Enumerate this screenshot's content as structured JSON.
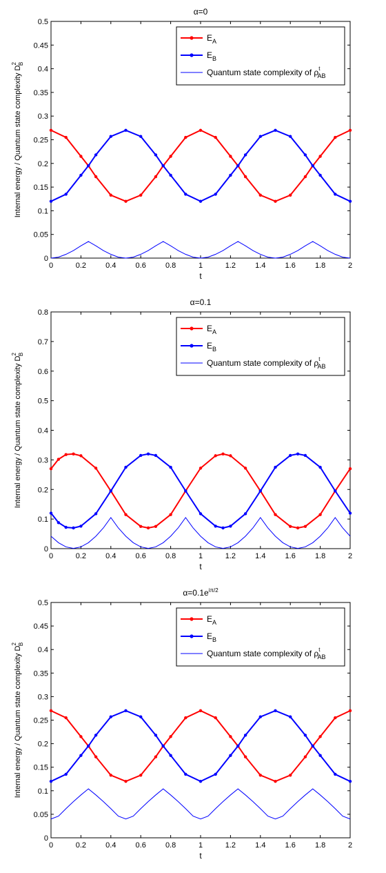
{
  "chart_data": [
    {
      "type": "line",
      "title": "α=0",
      "xlabel": "t",
      "ylabel": "Internal energy / Quantum state complexity D",
      "ylabel_sub": "B",
      "ylabel_sup": "2",
      "xlim": [
        0,
        2
      ],
      "ylim": [
        0,
        0.5
      ],
      "xticks": [
        "0",
        "0.2",
        "0.4",
        "0.6",
        "0.8",
        "1",
        "1.2",
        "1.4",
        "1.6",
        "1.8",
        "2"
      ],
      "yticks": [
        "0",
        "0.05",
        "0.1",
        "0.15",
        "0.2",
        "0.25",
        "0.3",
        "0.35",
        "0.4",
        "0.45",
        "0.5"
      ],
      "grid": false,
      "legend_position": "top-right",
      "series": [
        {
          "name": "E",
          "name_sub": "A",
          "color": "#ff0000",
          "marker": "dot",
          "x": [
            0,
            0.1,
            0.2,
            0.25,
            0.3,
            0.4,
            0.5,
            0.6,
            0.7,
            0.75,
            0.8,
            0.9,
            1.0,
            1.1,
            1.2,
            1.25,
            1.3,
            1.4,
            1.5,
            1.6,
            1.7,
            1.75,
            1.8,
            1.9,
            2.0
          ],
          "y": [
            0.27,
            0.255,
            0.215,
            0.195,
            0.172,
            0.133,
            0.12,
            0.133,
            0.172,
            0.195,
            0.215,
            0.255,
            0.27,
            0.255,
            0.215,
            0.195,
            0.172,
            0.133,
            0.12,
            0.133,
            0.172,
            0.195,
            0.215,
            0.255,
            0.27
          ]
        },
        {
          "name": "E",
          "name_sub": "B",
          "color": "#0000ff",
          "marker": "dot",
          "x": [
            0,
            0.1,
            0.2,
            0.25,
            0.3,
            0.4,
            0.5,
            0.6,
            0.7,
            0.75,
            0.8,
            0.9,
            1.0,
            1.1,
            1.2,
            1.25,
            1.3,
            1.4,
            1.5,
            1.6,
            1.7,
            1.75,
            1.8,
            1.9,
            2.0
          ],
          "y": [
            0.12,
            0.135,
            0.175,
            0.195,
            0.218,
            0.257,
            0.27,
            0.257,
            0.218,
            0.195,
            0.175,
            0.135,
            0.12,
            0.135,
            0.175,
            0.195,
            0.218,
            0.257,
            0.27,
            0.257,
            0.218,
            0.195,
            0.175,
            0.135,
            0.12
          ]
        },
        {
          "name": "Quantum state complexity of ρ",
          "name_sub": "AB",
          "name_sup": "t",
          "color": "#0000ff",
          "marker": "none",
          "x": [
            0,
            0.05,
            0.1,
            0.15,
            0.2,
            0.25,
            0.3,
            0.35,
            0.4,
            0.45,
            0.5,
            0.55,
            0.6,
            0.65,
            0.7,
            0.75,
            0.8,
            0.85,
            0.9,
            0.95,
            1.0,
            1.05,
            1.1,
            1.15,
            1.2,
            1.25,
            1.3,
            1.35,
            1.4,
            1.45,
            1.5,
            1.55,
            1.6,
            1.65,
            1.7,
            1.75,
            1.8,
            1.85,
            1.9,
            1.95,
            2.0
          ],
          "y": [
            0,
            0.002,
            0.008,
            0.016,
            0.026,
            0.035,
            0.026,
            0.016,
            0.008,
            0.002,
            0,
            0.002,
            0.008,
            0.016,
            0.026,
            0.035,
            0.026,
            0.016,
            0.008,
            0.002,
            0,
            0.002,
            0.008,
            0.016,
            0.026,
            0.035,
            0.026,
            0.016,
            0.008,
            0.002,
            0,
            0.002,
            0.008,
            0.016,
            0.026,
            0.035,
            0.026,
            0.016,
            0.008,
            0.002,
            0
          ]
        }
      ]
    },
    {
      "type": "line",
      "title": "α=0.1",
      "xlabel": "t",
      "ylabel": "Internal energy / Quantum state complexity D",
      "ylabel_sub": "B",
      "ylabel_sup": "2",
      "xlim": [
        0,
        2
      ],
      "ylim": [
        0,
        0.8
      ],
      "xticks": [
        "0",
        "0.2",
        "0.4",
        "0.6",
        "0.8",
        "1",
        "1.2",
        "1.4",
        "1.6",
        "1.8",
        "2"
      ],
      "yticks": [
        "0",
        "0.1",
        "0.2",
        "0.3",
        "0.4",
        "0.5",
        "0.6",
        "0.7",
        "0.8"
      ],
      "grid": false,
      "legend_position": "top-right",
      "series": [
        {
          "name": "E",
          "name_sub": "A",
          "color": "#ff0000",
          "marker": "dot",
          "x": [
            0,
            0.05,
            0.1,
            0.15,
            0.2,
            0.3,
            0.4,
            0.5,
            0.6,
            0.65,
            0.7,
            0.8,
            0.9,
            1.0,
            1.1,
            1.15,
            1.2,
            1.3,
            1.4,
            1.5,
            1.6,
            1.65,
            1.7,
            1.8,
            1.9,
            2.0
          ],
          "y": [
            0.27,
            0.302,
            0.318,
            0.32,
            0.314,
            0.272,
            0.195,
            0.115,
            0.075,
            0.07,
            0.075,
            0.115,
            0.195,
            0.272,
            0.314,
            0.32,
            0.314,
            0.272,
            0.195,
            0.115,
            0.075,
            0.07,
            0.075,
            0.115,
            0.195,
            0.27
          ]
        },
        {
          "name": "E",
          "name_sub": "B",
          "color": "#0000ff",
          "marker": "dot",
          "x": [
            0,
            0.05,
            0.1,
            0.15,
            0.2,
            0.3,
            0.4,
            0.5,
            0.6,
            0.65,
            0.7,
            0.8,
            0.9,
            1.0,
            1.1,
            1.15,
            1.2,
            1.3,
            1.4,
            1.5,
            1.6,
            1.65,
            1.7,
            1.8,
            1.9,
            2.0
          ],
          "y": [
            0.12,
            0.088,
            0.072,
            0.07,
            0.076,
            0.118,
            0.195,
            0.275,
            0.315,
            0.32,
            0.315,
            0.275,
            0.195,
            0.118,
            0.076,
            0.07,
            0.076,
            0.118,
            0.195,
            0.275,
            0.315,
            0.32,
            0.315,
            0.275,
            0.195,
            0.12
          ]
        },
        {
          "name": "Quantum state complexity of ρ",
          "name_sub": "AB",
          "name_sup": "t",
          "color": "#0000ff",
          "marker": "none",
          "x": [
            0,
            0.05,
            0.1,
            0.15,
            0.2,
            0.25,
            0.3,
            0.35,
            0.4,
            0.45,
            0.5,
            0.55,
            0.6,
            0.65,
            0.7,
            0.75,
            0.8,
            0.85,
            0.9,
            0.95,
            1.0,
            1.05,
            1.1,
            1.15,
            1.2,
            1.25,
            1.3,
            1.35,
            1.4,
            1.45,
            1.5,
            1.55,
            1.6,
            1.65,
            1.7,
            1.75,
            1.8,
            1.85,
            1.9,
            1.95,
            2.0
          ],
          "y": [
            0.042,
            0.02,
            0.006,
            0.001,
            0.006,
            0.02,
            0.042,
            0.07,
            0.105,
            0.07,
            0.042,
            0.02,
            0.006,
            0.001,
            0.006,
            0.02,
            0.042,
            0.07,
            0.105,
            0.07,
            0.042,
            0.02,
            0.006,
            0.001,
            0.006,
            0.02,
            0.042,
            0.07,
            0.105,
            0.07,
            0.042,
            0.02,
            0.006,
            0.001,
            0.006,
            0.02,
            0.042,
            0.07,
            0.105,
            0.07,
            0.042
          ]
        }
      ]
    },
    {
      "type": "line",
      "title": "α=0.1e",
      "title_sup": "iπ/2",
      "xlabel": "t",
      "ylabel": "Internal energy / Quantum state complexity D",
      "ylabel_sub": "B",
      "ylabel_sup": "2",
      "xlim": [
        0,
        2
      ],
      "ylim": [
        0,
        0.5
      ],
      "xticks": [
        "0",
        "0.2",
        "0.4",
        "0.6",
        "0.8",
        "1",
        "1.2",
        "1.4",
        "1.6",
        "1.8",
        "2"
      ],
      "yticks": [
        "0",
        "0.05",
        "0.1",
        "0.15",
        "0.2",
        "0.25",
        "0.3",
        "0.35",
        "0.4",
        "0.45",
        "0.5"
      ],
      "grid": false,
      "legend_position": "top-right",
      "series": [
        {
          "name": "E",
          "name_sub": "A",
          "color": "#ff0000",
          "marker": "dot",
          "x": [
            0,
            0.1,
            0.2,
            0.25,
            0.3,
            0.4,
            0.5,
            0.6,
            0.7,
            0.75,
            0.8,
            0.9,
            1.0,
            1.1,
            1.2,
            1.25,
            1.3,
            1.4,
            1.5,
            1.6,
            1.7,
            1.75,
            1.8,
            1.9,
            2.0
          ],
          "y": [
            0.27,
            0.255,
            0.215,
            0.195,
            0.172,
            0.133,
            0.12,
            0.133,
            0.172,
            0.195,
            0.215,
            0.255,
            0.27,
            0.255,
            0.215,
            0.195,
            0.172,
            0.133,
            0.12,
            0.133,
            0.172,
            0.195,
            0.215,
            0.255,
            0.27
          ]
        },
        {
          "name": "E",
          "name_sub": "B",
          "color": "#0000ff",
          "marker": "dot",
          "x": [
            0,
            0.1,
            0.2,
            0.25,
            0.3,
            0.4,
            0.5,
            0.6,
            0.7,
            0.75,
            0.8,
            0.9,
            1.0,
            1.1,
            1.2,
            1.25,
            1.3,
            1.4,
            1.5,
            1.6,
            1.7,
            1.75,
            1.8,
            1.9,
            2.0
          ],
          "y": [
            0.12,
            0.135,
            0.175,
            0.195,
            0.218,
            0.257,
            0.27,
            0.257,
            0.218,
            0.195,
            0.175,
            0.135,
            0.12,
            0.135,
            0.175,
            0.195,
            0.218,
            0.257,
            0.27,
            0.257,
            0.218,
            0.195,
            0.175,
            0.135,
            0.12
          ]
        },
        {
          "name": "Quantum state complexity of ρ",
          "name_sub": "AB",
          "name_sup": "t",
          "color": "#0000ff",
          "marker": "none",
          "x": [
            0,
            0.05,
            0.1,
            0.15,
            0.2,
            0.25,
            0.3,
            0.35,
            0.4,
            0.45,
            0.5,
            0.55,
            0.6,
            0.65,
            0.7,
            0.75,
            0.8,
            0.85,
            0.9,
            0.95,
            1.0,
            1.05,
            1.1,
            1.15,
            1.2,
            1.25,
            1.3,
            1.35,
            1.4,
            1.45,
            1.5,
            1.55,
            1.6,
            1.65,
            1.7,
            1.75,
            1.8,
            1.85,
            1.9,
            1.95,
            2.0
          ],
          "y": [
            0.04,
            0.046,
            0.062,
            0.077,
            0.091,
            0.104,
            0.091,
            0.077,
            0.062,
            0.046,
            0.04,
            0.046,
            0.062,
            0.077,
            0.091,
            0.104,
            0.091,
            0.077,
            0.062,
            0.046,
            0.04,
            0.046,
            0.062,
            0.077,
            0.091,
            0.104,
            0.091,
            0.077,
            0.062,
            0.046,
            0.04,
            0.046,
            0.062,
            0.077,
            0.091,
            0.104,
            0.091,
            0.077,
            0.062,
            0.046,
            0.04
          ]
        }
      ]
    }
  ]
}
